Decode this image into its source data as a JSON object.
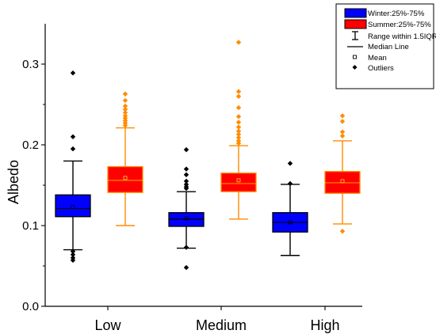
{
  "chart_data": {
    "type": "box",
    "ylabel": "Albedo",
    "xlabel": "",
    "ylim": [
      0,
      0.35
    ],
    "yticks": [
      "0.0",
      "0.1",
      "0.2",
      "0.3"
    ],
    "categories": [
      "Low",
      "Medium",
      "High"
    ],
    "legend_position": "top-right",
    "legend": {
      "winter": "Winter:25%-75%",
      "summer": "Summer:25%-75%",
      "range": "Range within 1.5IQR",
      "median": "Median Line",
      "mean": "Mean",
      "outliers": "Outliers"
    },
    "series": [
      {
        "name": "Winter:25%-75%",
        "color": "#0000ff",
        "whisker_color": "#000000",
        "boxes": [
          {
            "q1": 0.111,
            "median": 0.121,
            "q3": 0.138,
            "mean": 0.123,
            "whisker_low": 0.07,
            "whisker_high": 0.18,
            "outliers": [
              0.289,
              0.21,
              0.195,
              0.068,
              0.064,
              0.06,
              0.057
            ]
          },
          {
            "q1": 0.099,
            "median": 0.108,
            "q3": 0.116,
            "mean": 0.109,
            "whisker_low": 0.072,
            "whisker_high": 0.142,
            "outliers": [
              0.194,
              0.17,
              0.163,
              0.155,
              0.151,
              0.148,
              0.146,
              0.073,
              0.048
            ]
          },
          {
            "q1": 0.092,
            "median": 0.104,
            "q3": 0.116,
            "mean": 0.104,
            "whisker_low": 0.063,
            "whisker_high": 0.151,
            "outliers": [
              0.177,
              0.152
            ]
          }
        ]
      },
      {
        "name": "Summer:25%-75%",
        "color": "#ff0000",
        "whisker_color": "#ff8c00",
        "boxes": [
          {
            "q1": 0.141,
            "median": 0.156,
            "q3": 0.173,
            "mean": 0.159,
            "whisker_low": 0.1,
            "whisker_high": 0.221,
            "outliers": [
              0.263,
              0.255,
              0.248,
              0.244,
              0.24,
              0.236,
              0.233,
              0.23,
              0.227,
              0.224
            ]
          },
          {
            "q1": 0.142,
            "median": 0.152,
            "q3": 0.165,
            "mean": 0.156,
            "whisker_low": 0.108,
            "whisker_high": 0.199,
            "outliers": [
              0.327,
              0.266,
              0.26,
              0.246,
              0.235,
              0.228,
              0.222,
              0.217,
              0.213,
              0.209,
              0.205,
              0.202
            ]
          },
          {
            "q1": 0.14,
            "median": 0.153,
            "q3": 0.167,
            "mean": 0.155,
            "whisker_low": 0.102,
            "whisker_high": 0.205,
            "outliers": [
              0.236,
              0.229,
              0.216,
              0.211,
              0.093
            ]
          }
        ]
      }
    ]
  }
}
